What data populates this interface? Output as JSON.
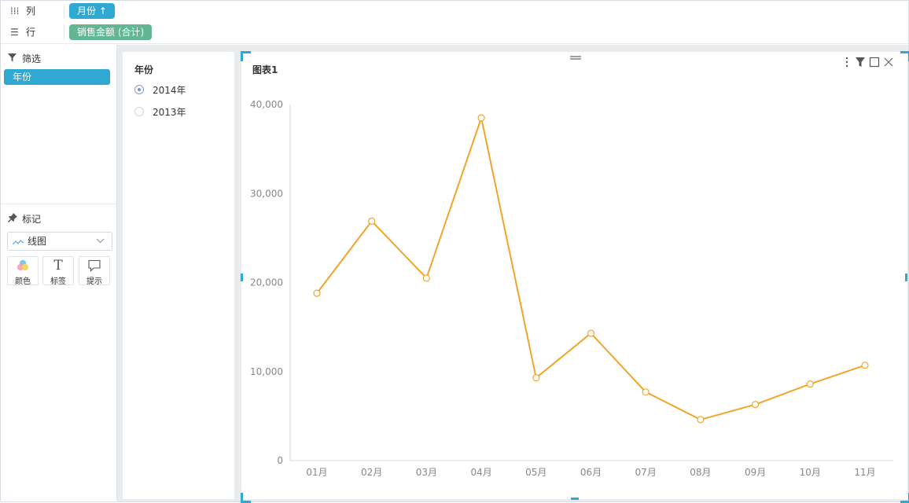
{
  "shelves": {
    "columns": {
      "label": "列",
      "pill": "月份 ↑"
    },
    "rows": {
      "label": "行",
      "pill": "销售金额 (合计)"
    }
  },
  "sidebar": {
    "filter_title": "筛选",
    "filter_chip": "年份",
    "marks_title": "标记",
    "mark_type": "线图",
    "mark_buttons": [
      "颜色",
      "标签",
      "提示"
    ]
  },
  "filter_card": {
    "title": "年份",
    "options": [
      {
        "label": "2014年",
        "selected": true
      },
      {
        "label": "2013年",
        "selected": false
      }
    ]
  },
  "chart_card": {
    "title": "图表1"
  },
  "colors": {
    "accent": "#2fa8d2",
    "line": "#f0a52a",
    "pill_green": "#62b693"
  },
  "chart_data": {
    "type": "line",
    "title": "图表1",
    "xlabel": "",
    "ylabel": "",
    "categories": [
      "01月",
      "02月",
      "03月",
      "04月",
      "05月",
      "06月",
      "07月",
      "08月",
      "09月",
      "10月",
      "11月"
    ],
    "series": [
      {
        "values": [
          18800,
          26900,
          20500,
          38500,
          9300,
          14300,
          7700,
          4600,
          6300,
          8600,
          10700
        ]
      }
    ],
    "ylim": [
      0,
      40000
    ],
    "yticks": [
      "0",
      "10,000",
      "20,000",
      "30,000",
      "40,000"
    ],
    "grid": false,
    "legend": "none"
  }
}
